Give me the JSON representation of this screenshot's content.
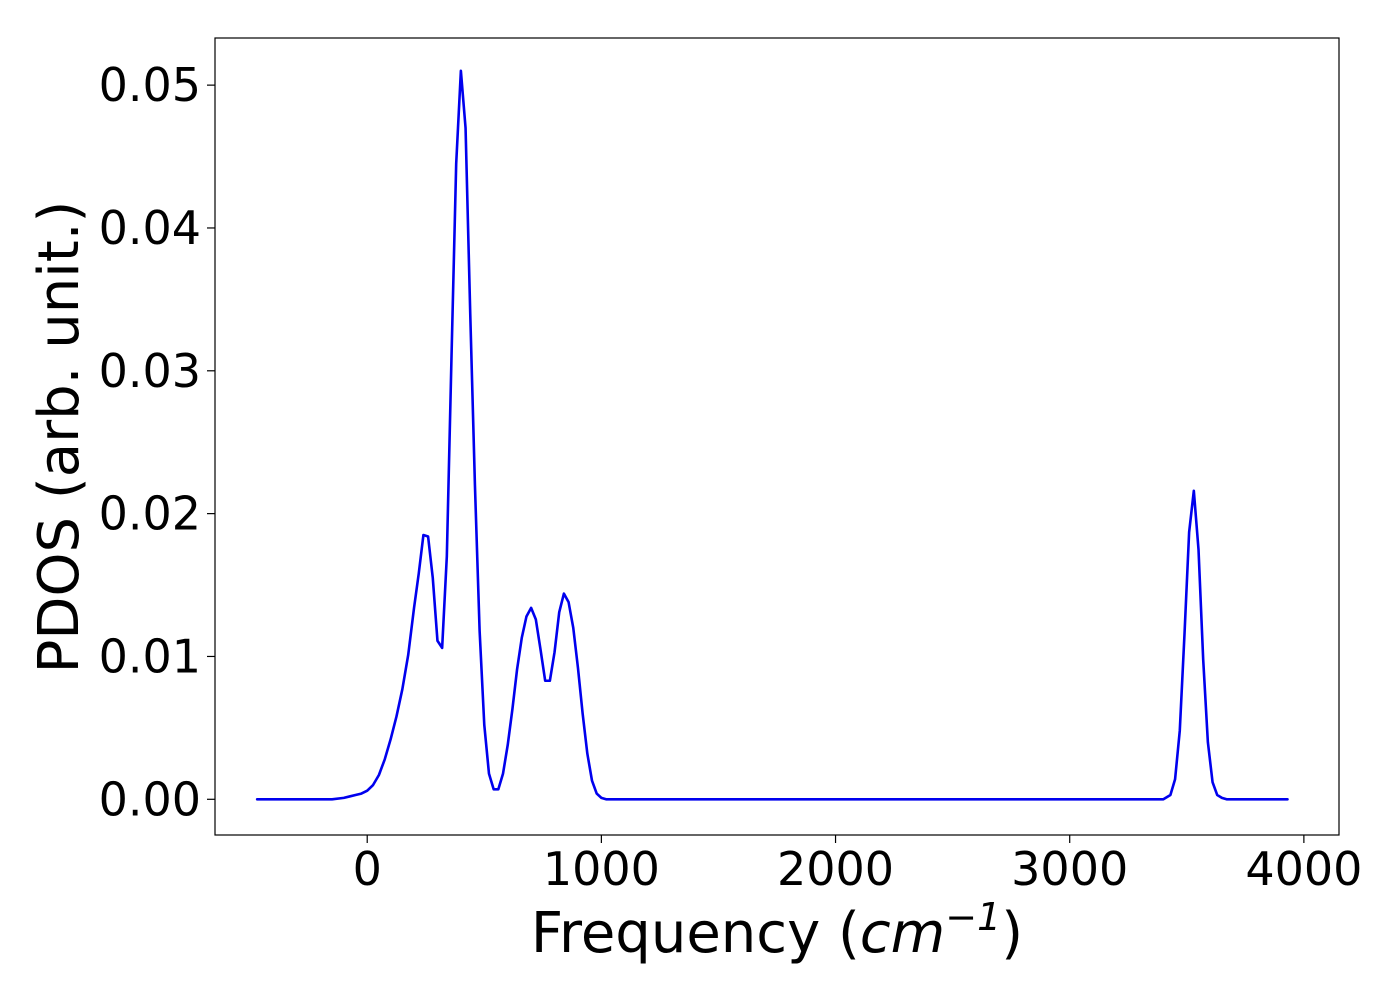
{
  "chart_data": {
    "type": "line",
    "title": "",
    "xlabel_prefix": "Frequency (",
    "xlabel_unit_base": "cm",
    "xlabel_unit_exp": "−1",
    "xlabel_suffix": ")",
    "ylabel": "PDOS (arb. unit.)",
    "xlim": [
      -650,
      4150
    ],
    "ylim": [
      -0.0025,
      0.0533
    ],
    "xticks": [
      0,
      1000,
      2000,
      3000,
      4000
    ],
    "xtick_labels": [
      "0",
      "1000",
      "2000",
      "3000",
      "4000"
    ],
    "yticks": [
      0.0,
      0.01,
      0.02,
      0.03,
      0.04,
      0.05
    ],
    "ytick_labels": [
      "0.00",
      "0.01",
      "0.02",
      "0.03",
      "0.04",
      "0.05"
    ],
    "grid": false,
    "legend": "none",
    "series": [
      {
        "color": "#0000ee",
        "x": [
          -470,
          -300,
          -150,
          -100,
          -75,
          -50,
          -25,
          0,
          25,
          50,
          75,
          100,
          125,
          150,
          175,
          200,
          220,
          240,
          260,
          280,
          300,
          320,
          340,
          360,
          380,
          400,
          420,
          440,
          460,
          480,
          500,
          520,
          540,
          560,
          580,
          600,
          620,
          640,
          660,
          680,
          700,
          720,
          740,
          760,
          780,
          800,
          820,
          840,
          860,
          880,
          900,
          920,
          940,
          960,
          980,
          1000,
          1020,
          1040,
          1060,
          1080,
          1100,
          1200,
          1500,
          2000,
          2500,
          3000,
          3400,
          3430,
          3450,
          3470,
          3490,
          3510,
          3530,
          3550,
          3570,
          3590,
          3610,
          3630,
          3650,
          3670,
          3700,
          3800,
          3930
        ],
        "y": [
          0.0,
          0.0,
          0.0,
          0.0001,
          0.0002,
          0.0003,
          0.0004,
          0.0006,
          0.001,
          0.0017,
          0.0028,
          0.0042,
          0.0058,
          0.0077,
          0.0101,
          0.0134,
          0.0158,
          0.0185,
          0.0184,
          0.0155,
          0.0111,
          0.0106,
          0.017,
          0.031,
          0.0445,
          0.051,
          0.047,
          0.034,
          0.022,
          0.0118,
          0.0052,
          0.0018,
          0.0007,
          0.0007,
          0.0018,
          0.0038,
          0.0063,
          0.0091,
          0.0113,
          0.0128,
          0.0134,
          0.0126,
          0.0105,
          0.0083,
          0.0083,
          0.0103,
          0.0131,
          0.0144,
          0.0138,
          0.012,
          0.0092,
          0.006,
          0.0032,
          0.0013,
          0.0004,
          0.0001,
          0.0,
          0.0,
          0.0,
          0.0,
          0.0,
          0.0,
          0.0,
          0.0,
          0.0,
          0.0,
          0.0,
          0.0003,
          0.0014,
          0.0048,
          0.0115,
          0.0187,
          0.0216,
          0.0175,
          0.0098,
          0.004,
          0.0012,
          0.0003,
          0.0001,
          0.0,
          0.0,
          0.0,
          0.0
        ]
      }
    ]
  }
}
